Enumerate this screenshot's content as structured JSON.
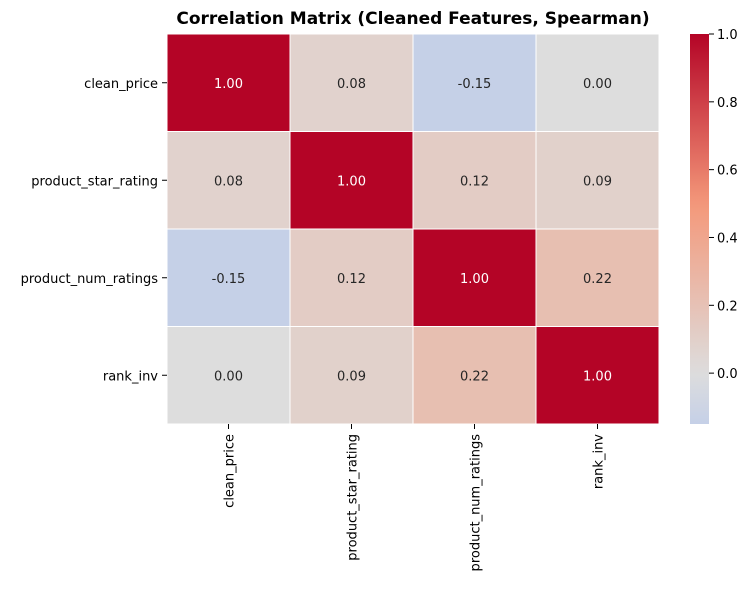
{
  "chart_data": {
    "type": "heatmap",
    "title": "Correlation Matrix (Cleaned Features, Spearman)",
    "row_labels": [
      "clean_price",
      "product_star_rating",
      "product_num_ratings",
      "rank_inv"
    ],
    "col_labels": [
      "clean_price",
      "product_star_rating",
      "product_num_ratings",
      "rank_inv"
    ],
    "values": [
      [
        1.0,
        0.08,
        -0.15,
        0.0
      ],
      [
        0.08,
        1.0,
        0.12,
        0.09
      ],
      [
        -0.15,
        0.12,
        1.0,
        0.22
      ],
      [
        0.0,
        0.09,
        0.22,
        1.0
      ]
    ],
    "cell_labels": [
      [
        "1.00",
        "0.08",
        "-0.15",
        "0.00"
      ],
      [
        "0.08",
        "1.00",
        "0.12",
        "0.09"
      ],
      [
        "-0.15",
        "0.12",
        "1.00",
        "0.22"
      ],
      [
        "0.00",
        "0.09",
        "0.22",
        "1.00"
      ]
    ],
    "colormap": "coolwarm",
    "center": 0,
    "vmin": -0.15,
    "vmax": 1.0,
    "colorbar_ticks": [
      {
        "value": 1.0,
        "label": "1.0"
      },
      {
        "value": 0.8,
        "label": "0.8"
      },
      {
        "value": 0.6,
        "label": "0.6"
      },
      {
        "value": 0.4,
        "label": "0.4"
      },
      {
        "value": 0.2,
        "label": "0.2"
      },
      {
        "value": 0.0,
        "label": "0.0"
      }
    ],
    "colors": {
      "cold": "#3b4cc0",
      "center": "#dddddd",
      "hot": "#b40426",
      "cell_border": "#ffffff",
      "text_dark": "#262626",
      "text_light": "#ffffff",
      "axis": "#000000"
    }
  }
}
